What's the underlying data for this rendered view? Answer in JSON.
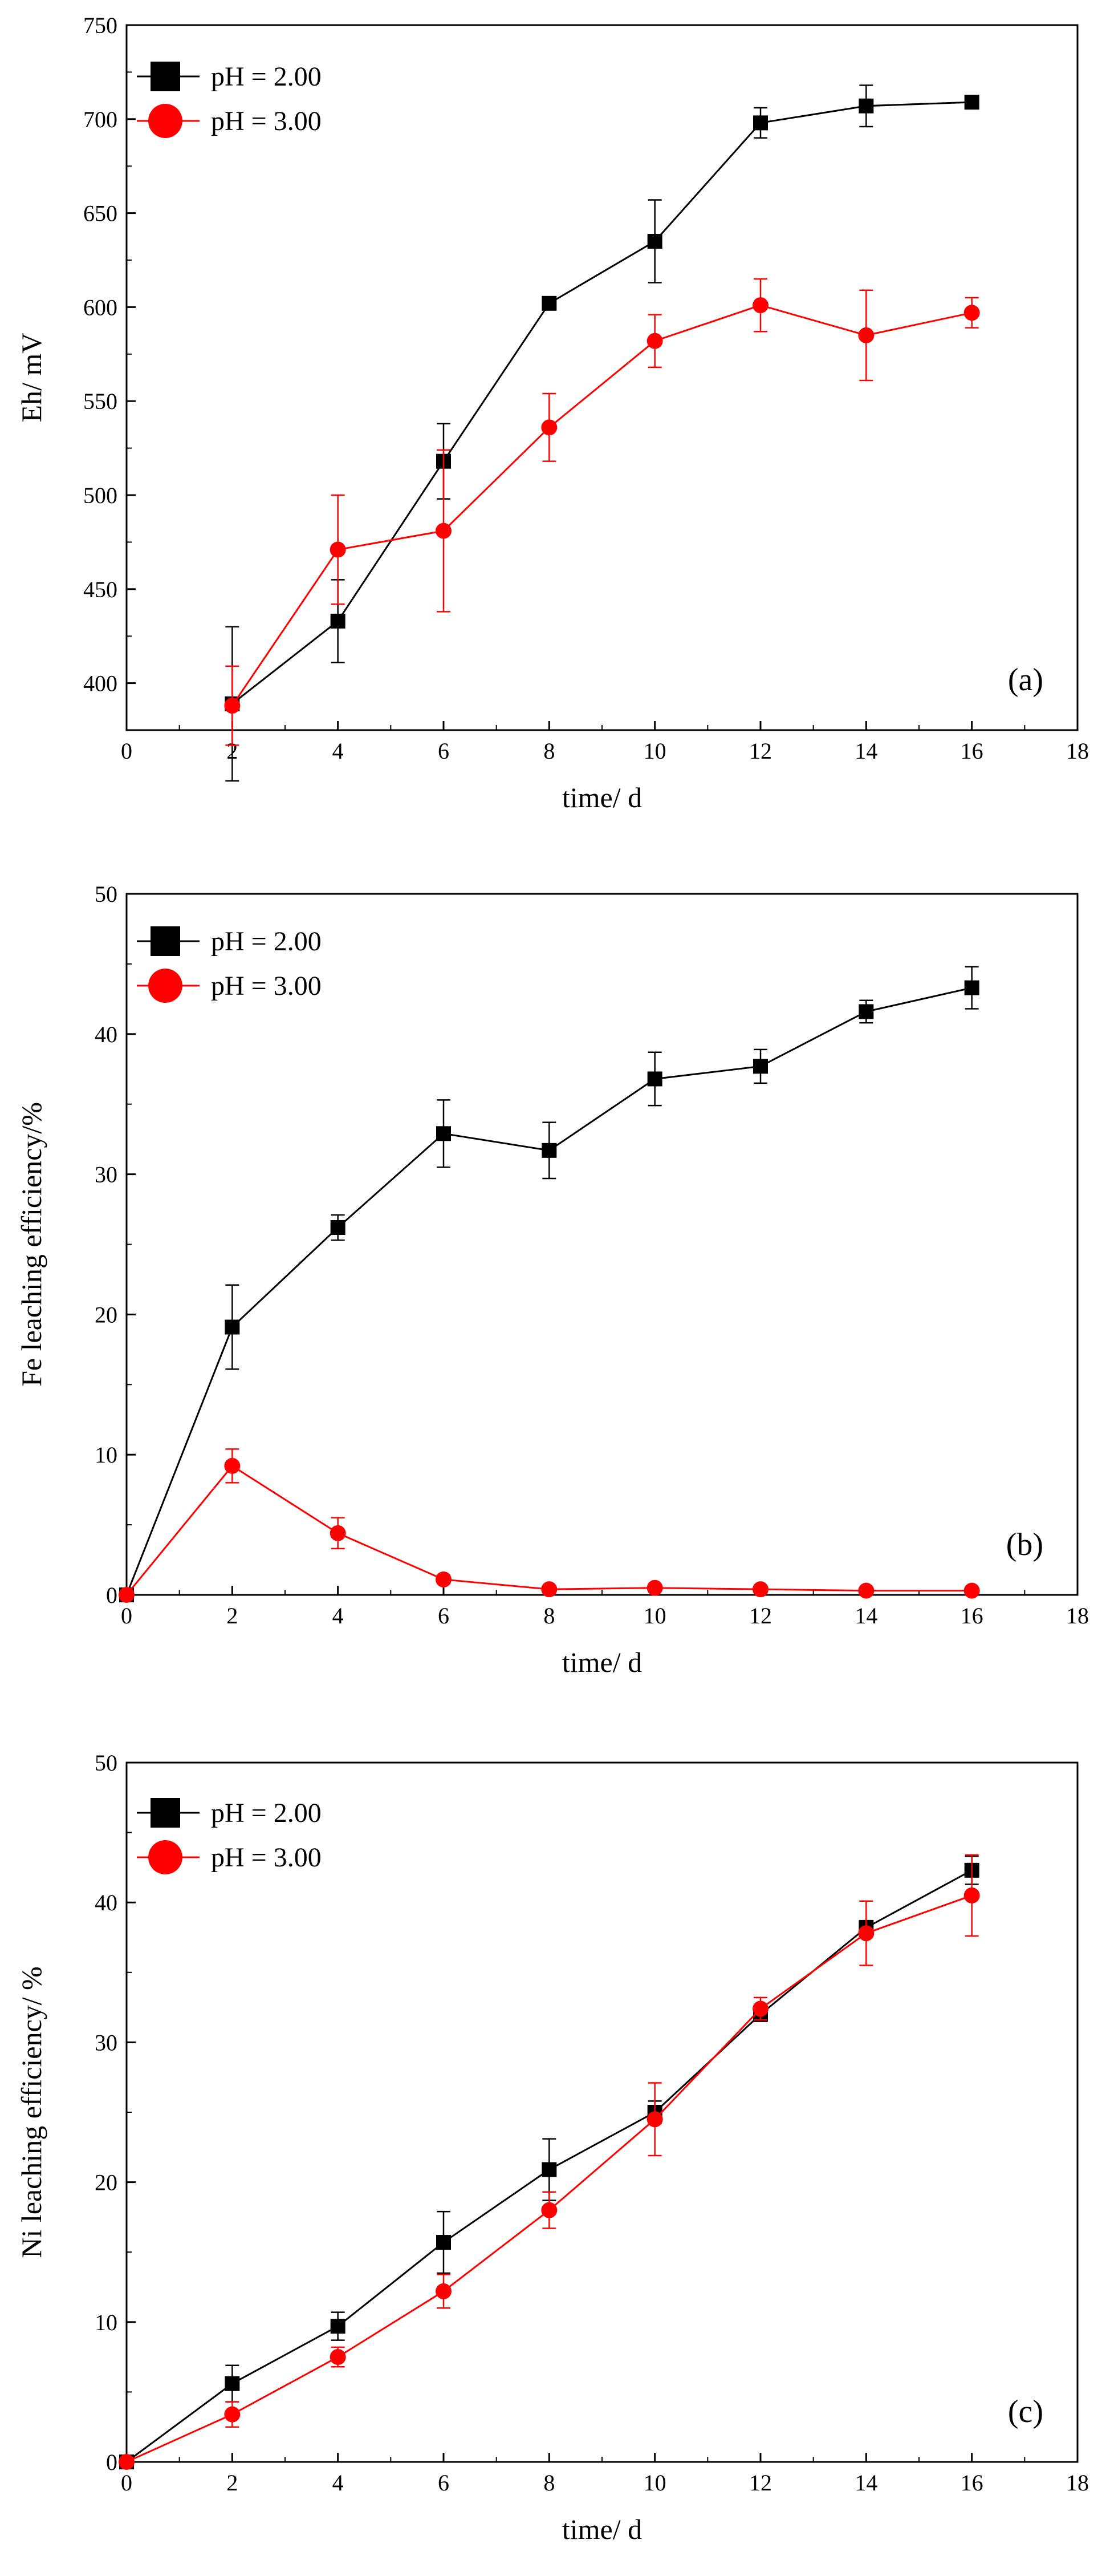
{
  "colors": {
    "ph2": "#000000",
    "ph3": "#ff0000"
  },
  "chart_data": [
    {
      "type": "line",
      "panel_label": "(a)",
      "xlabel": "time/ d",
      "ylabel": "Eh/ mV",
      "xlim": [
        0,
        18
      ],
      "ylim": [
        375,
        750
      ],
      "xticks": [
        0,
        2,
        4,
        6,
        8,
        10,
        12,
        14,
        16,
        18
      ],
      "yticks": [
        400,
        450,
        500,
        550,
        600,
        650,
        700,
        750
      ],
      "legend_position": "top-left",
      "series": [
        {
          "name": "pH = 2.00",
          "marker": "square",
          "x": [
            2,
            4,
            6,
            8,
            10,
            12,
            14,
            16
          ],
          "y": [
            389,
            433,
            518,
            602,
            635,
            698,
            707,
            709
          ],
          "err": [
            41,
            22,
            20,
            3,
            22,
            8,
            11,
            2
          ]
        },
        {
          "name": "pH = 3.00",
          "marker": "circle",
          "x": [
            2,
            4,
            6,
            8,
            10,
            12,
            14,
            16
          ],
          "y": [
            388,
            471,
            481,
            536,
            582,
            601,
            585,
            597
          ],
          "err": [
            21,
            29,
            43,
            18,
            14,
            14,
            24,
            8
          ]
        }
      ]
    },
    {
      "type": "line",
      "panel_label": "(b)",
      "xlabel": "time/ d",
      "ylabel": "Fe leaching efficiency/%",
      "xlim": [
        0,
        18
      ],
      "ylim": [
        0,
        50
      ],
      "xticks": [
        0,
        2,
        4,
        6,
        8,
        10,
        12,
        14,
        16,
        18
      ],
      "yticks": [
        0,
        10,
        20,
        30,
        40,
        50
      ],
      "legend_position": "top-left",
      "series": [
        {
          "name": "pH = 2.00",
          "marker": "square",
          "x": [
            0,
            2,
            4,
            6,
            8,
            10,
            12,
            14,
            16
          ],
          "y": [
            0,
            19.1,
            26.2,
            32.9,
            31.7,
            36.8,
            37.7,
            41.6,
            43.3
          ],
          "err": [
            0,
            3.0,
            0.9,
            2.4,
            2.0,
            1.9,
            1.2,
            0.8,
            1.5
          ]
        },
        {
          "name": "pH = 3.00",
          "marker": "circle",
          "x": [
            0,
            2,
            4,
            6,
            8,
            10,
            12,
            14,
            16
          ],
          "y": [
            0,
            9.2,
            4.4,
            1.1,
            0.4,
            0.5,
            0.4,
            0.3,
            0.3
          ],
          "err": [
            0,
            1.2,
            1.1,
            0.3,
            0.1,
            0.2,
            0.1,
            0.1,
            0.1
          ]
        }
      ]
    },
    {
      "type": "line",
      "panel_label": "(c)",
      "xlabel": "time/ d",
      "ylabel": "Ni leaching efficiency/ %",
      "xlim": [
        0,
        18
      ],
      "ylim": [
        0,
        50
      ],
      "xticks": [
        0,
        2,
        4,
        6,
        8,
        10,
        12,
        14,
        16,
        18
      ],
      "yticks": [
        0,
        10,
        20,
        30,
        40,
        50
      ],
      "legend_position": "top-left",
      "series": [
        {
          "name": "pH = 2.00",
          "marker": "square",
          "x": [
            0,
            2,
            4,
            6,
            8,
            10,
            12,
            14,
            16
          ],
          "y": [
            0,
            5.6,
            9.7,
            15.7,
            20.9,
            25.0,
            32.0,
            38.2,
            42.3
          ],
          "err": [
            0,
            1.3,
            1.0,
            2.2,
            2.2,
            0.8,
            0.5,
            0.5,
            1.0
          ]
        },
        {
          "name": "pH = 3.00",
          "marker": "circle",
          "x": [
            0,
            2,
            4,
            6,
            8,
            10,
            12,
            14,
            16
          ],
          "y": [
            0,
            3.4,
            7.5,
            12.2,
            18.0,
            24.5,
            32.4,
            37.8,
            40.5
          ],
          "err": [
            0,
            0.9,
            0.7,
            1.2,
            1.3,
            2.6,
            0.8,
            2.3,
            2.9
          ]
        }
      ]
    }
  ]
}
